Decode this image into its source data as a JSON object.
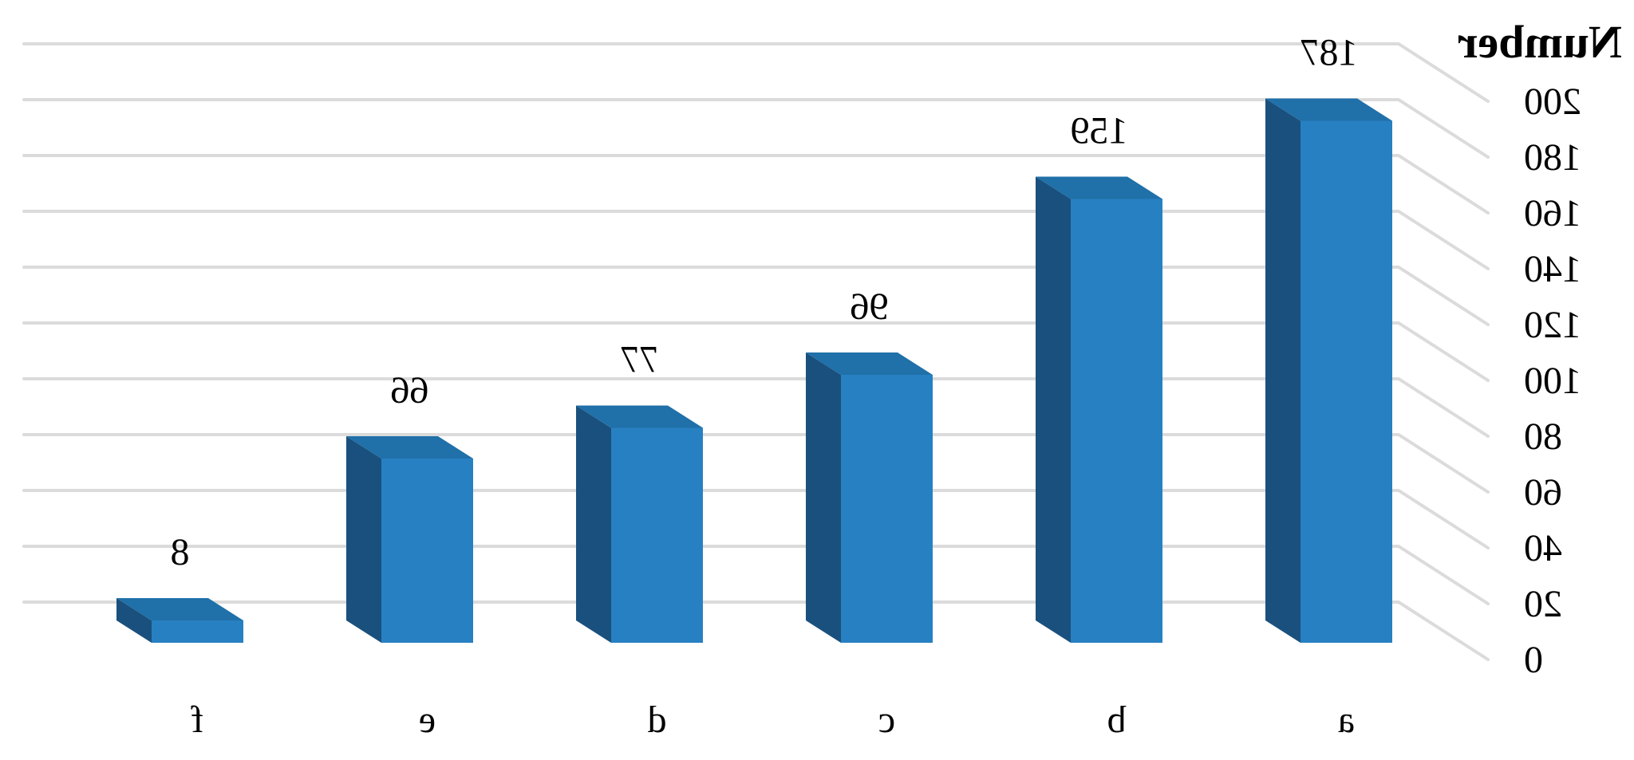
{
  "chart_data": {
    "type": "bar",
    "style": "3d-column",
    "mirrored_horizontally": true,
    "title": "",
    "axis_title": "Number",
    "xlabel": "",
    "ylabel": "Number",
    "categories": [
      "a",
      "b",
      "c",
      "d",
      "e",
      "f"
    ],
    "series": [
      {
        "name": "Number",
        "values": [
          187,
          159,
          96,
          77,
          66,
          8
        ]
      }
    ],
    "data_labels": [
      187,
      159,
      96,
      77,
      66,
      8
    ],
    "y_ticks": [
      0,
      20,
      40,
      60,
      80,
      100,
      120,
      140,
      160,
      180,
      200
    ],
    "ylim": [
      0,
      200
    ],
    "grid": true,
    "legend": "none",
    "colors": {
      "bar_front": "#2780C2",
      "bar_side": "#1A507D",
      "bar_top": "#2070A9",
      "gridline": "#DBDBDB",
      "text": "#000000",
      "background": "#FFFFFF"
    }
  }
}
